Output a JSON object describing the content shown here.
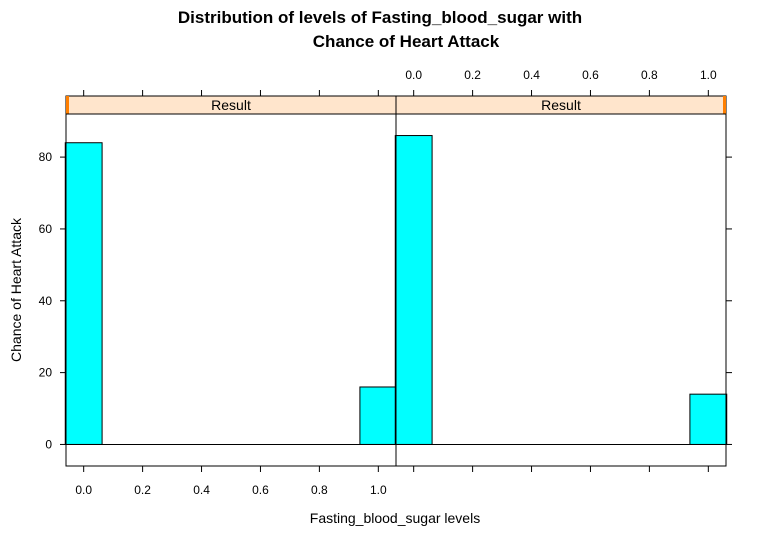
{
  "chart_data": {
    "type": "bar",
    "title_lines": [
      "Distribution of levels of Fasting_blood_sugar with",
      "Chance of Heart Attack"
    ],
    "xlabel": "Fasting_blood_sugar levels",
    "ylabel": "Chance of Heart Attack",
    "xlim": [
      -0.06,
      1.06
    ],
    "ylim": [
      -6,
      92
    ],
    "x_ticks": [
      "0.0",
      "0.2",
      "0.4",
      "0.6",
      "0.8",
      "1.0"
    ],
    "x_tick_values": [
      0,
      0.2,
      0.4,
      0.6,
      0.8,
      1.0
    ],
    "y_ticks": [
      "0",
      "20",
      "40",
      "60",
      "80"
    ],
    "y_tick_values": [
      0,
      20,
      40,
      60,
      80
    ],
    "bar_width": 0.125,
    "strip_color": "#ffe5cc",
    "strip_accent": "#ff7f00",
    "bar_color": "#00ffff",
    "panels": [
      {
        "strip_label": "Result",
        "x": [
          0.0,
          1.0
        ],
        "values": [
          84,
          16
        ]
      },
      {
        "strip_label": "Result",
        "x": [
          0.0,
          1.0
        ],
        "values": [
          86,
          14
        ]
      }
    ]
  }
}
